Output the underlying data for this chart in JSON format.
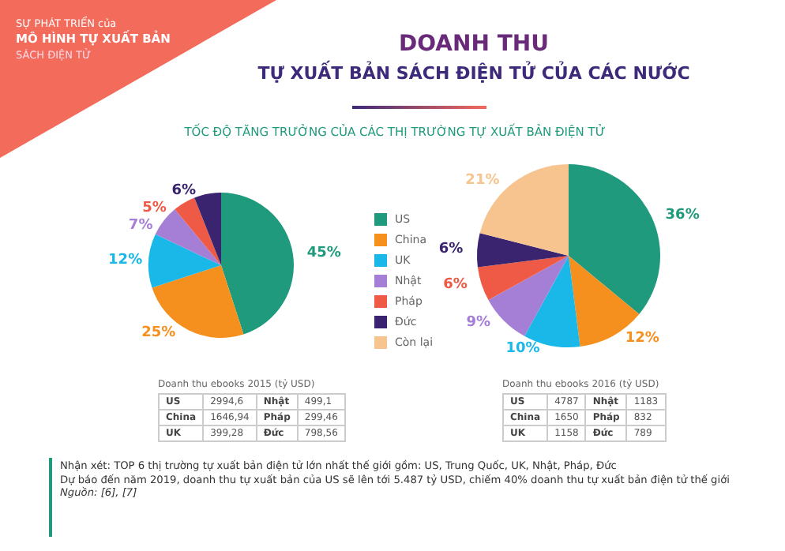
{
  "chart_data": [
    {
      "type": "other",
      "title": "DOANH THU",
      "subtitle": "TỰ XUẤT BẢN SÁCH ĐIỆN TỬ CỦA CÁC NƯỚC",
      "annotations": [
        "SỰ PHÁT TRIỂN của",
        "MÔ HÌNH TỰ XUẤT BẢN",
        "SÁCH ĐIỆN TỬ",
        "TỐC ĐỘ TĂNG TRƯỞNG CỦA CÁC THỊ TRƯỜNG TỰ XUẤT BẢN ĐIỆN TỬ",
        "Nhận xét: TOP 6 thị trường tự xuất bản điện tử lớn nhất thế giới gồm: US, Trung Quốc, UK, Nhật, Pháp, Đức",
        "Dự báo đến năm 2019, doanh thu tự xuất bản của US sẽ lên tới 5.487 tỷ USD, chiếm 40% doanh thu tự xuất bản điện tử thế giới",
        "Nguồn: [6], [7]"
      ]
    },
    {
      "type": "pie",
      "categories": [
        "US",
        "China",
        "UK",
        "Nhật",
        "Pháp",
        "Đức",
        "Còn lại"
      ],
      "colors": [
        "#1f9a7c",
        "#f5901e",
        "#1ab8e8",
        "#a57fd6",
        "#ee5a45",
        "#3a2470",
        "#f7c48f"
      ],
      "series": [
        {
          "values": [
            45,
            25,
            12,
            7,
            5,
            6,
            null
          ],
          "value_labels": [
            "45%",
            "25%",
            "12%",
            "7%",
            "5%",
            "6%",
            null
          ]
        },
        {
          "values": [
            36,
            12,
            10,
            9,
            6,
            6,
            21
          ],
          "value_labels": [
            "36%",
            "12%",
            "10%",
            "9%",
            "6%",
            "6%",
            "21%"
          ]
        }
      ],
      "legend": "center",
      "annotations": [
        "Doanh thu ebooks 2015 (tỷ USD)",
        "US",
        "2994,6",
        "Nhật",
        "499,1",
        "China",
        "1646,94",
        "Pháp",
        "299,46",
        "UK",
        "399,28",
        "Đức",
        "798,56",
        "Doanh thu ebooks 2016 (tỷ USD)",
        "US",
        "4787",
        "Nhật",
        "1183",
        "China",
        "1650",
        "Pháp",
        "832",
        "UK",
        "1158",
        "Đức",
        "789"
      ]
    }
  ]
}
